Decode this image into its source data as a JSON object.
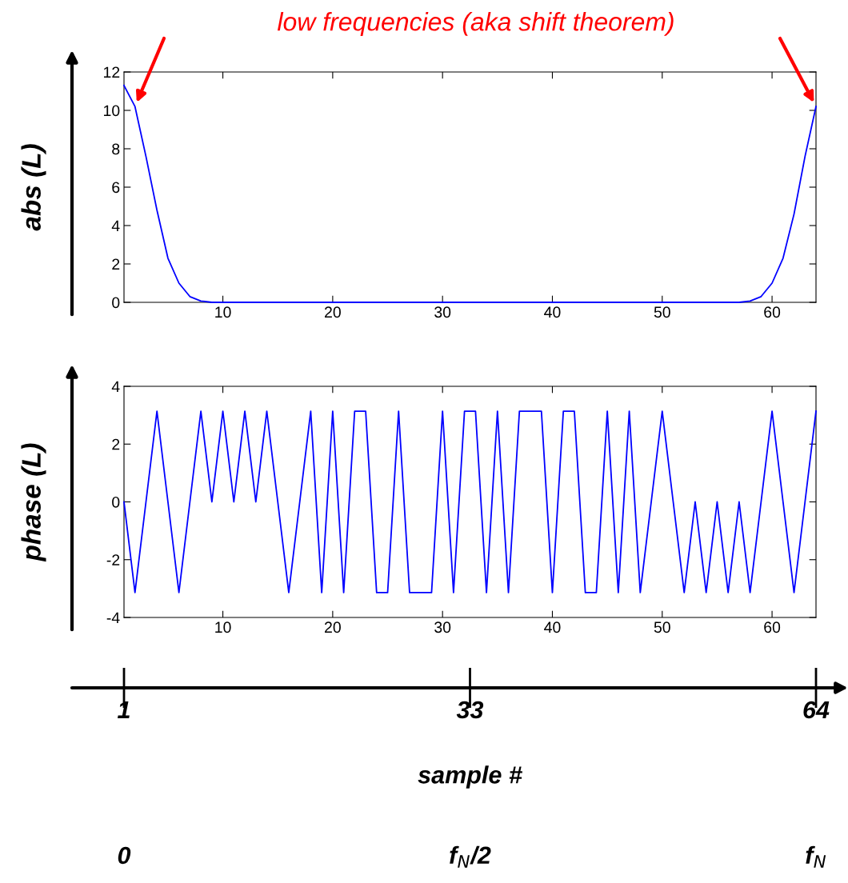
{
  "chart_data": [
    {
      "type": "line",
      "title": "low frequencies (aka shift theorem)",
      "ylabel": "abs (L)",
      "xlim": [
        1,
        64
      ],
      "xticks": [
        10,
        20,
        30,
        40,
        50,
        60
      ],
      "ylim": [
        0,
        12
      ],
      "yticks": [
        0,
        2,
        4,
        6,
        8,
        10,
        12
      ],
      "grid": false,
      "legend": false,
      "x": [
        1,
        2,
        3,
        4,
        5,
        6,
        7,
        8,
        9,
        10,
        11,
        12,
        13,
        14,
        15,
        16,
        17,
        18,
        19,
        20,
        21,
        22,
        23,
        24,
        25,
        26,
        27,
        28,
        29,
        30,
        31,
        32,
        33,
        34,
        35,
        36,
        37,
        38,
        39,
        40,
        41,
        42,
        43,
        44,
        45,
        46,
        47,
        48,
        49,
        50,
        51,
        52,
        53,
        54,
        55,
        56,
        57,
        58,
        59,
        60,
        61,
        62,
        63,
        64
      ],
      "series": [
        {
          "color": "#0000ff",
          "values": [
            11.3,
            10.2,
            7.6,
            4.8,
            2.3,
            1.0,
            0.3,
            0.07,
            0,
            0,
            0,
            0,
            0,
            0,
            0,
            0,
            0,
            0,
            0,
            0,
            0,
            0,
            0,
            0,
            0,
            0,
            0,
            0,
            0,
            0,
            0,
            0,
            0,
            0,
            0,
            0,
            0,
            0,
            0,
            0,
            0,
            0,
            0,
            0,
            0,
            0,
            0,
            0,
            0,
            0,
            0,
            0,
            0,
            0,
            0,
            0,
            0,
            0.07,
            0.3,
            1.0,
            2.3,
            4.6,
            7.6,
            10.2
          ]
        }
      ]
    },
    {
      "type": "line",
      "ylabel": "phase (L)",
      "xlim": [
        1,
        64
      ],
      "xticks": [
        10,
        20,
        30,
        40,
        50,
        60
      ],
      "ylim": [
        -4,
        4
      ],
      "yticks": [
        -4,
        -2,
        0,
        2,
        4
      ],
      "grid": false,
      "legend": false,
      "x": [
        1,
        2,
        3,
        4,
        5,
        6,
        7,
        8,
        9,
        10,
        11,
        12,
        13,
        14,
        15,
        16,
        17,
        18,
        19,
        20,
        21,
        22,
        23,
        24,
        25,
        26,
        27,
        28,
        29,
        30,
        31,
        32,
        33,
        34,
        35,
        36,
        37,
        38,
        39,
        40,
        41,
        42,
        43,
        44,
        45,
        46,
        47,
        48,
        49,
        50,
        51,
        52,
        53,
        54,
        55,
        56,
        57,
        58,
        59,
        60,
        61,
        62,
        63,
        64
      ],
      "series": [
        {
          "color": "#0000ff",
          "values": [
            0,
            -3.14,
            0,
            3.14,
            0,
            -3.14,
            0,
            3.14,
            0,
            3.14,
            0,
            3.14,
            0,
            3.14,
            0,
            -3.14,
            0,
            3.14,
            -3.14,
            3.14,
            -3.14,
            3.14,
            3.14,
            -3.14,
            -3.14,
            3.14,
            -3.14,
            -3.14,
            -3.14,
            3.14,
            -3.14,
            3.14,
            3.14,
            -3.14,
            3.14,
            -3.14,
            3.14,
            3.14,
            3.14,
            -3.14,
            3.14,
            3.14,
            -3.14,
            -3.14,
            3.14,
            -3.14,
            3.14,
            -3.14,
            0,
            3.14,
            0,
            -3.14,
            0,
            -3.14,
            0,
            -3.14,
            0,
            -3.14,
            0,
            3.14,
            0,
            -3.14,
            0,
            3.14
          ]
        }
      ]
    },
    {
      "type": "other",
      "xlabel": "sample #",
      "annotations": [
        "1",
        "33",
        "64",
        "0",
        "f$_{N}$/2",
        "f$_{N}$"
      ]
    }
  ]
}
